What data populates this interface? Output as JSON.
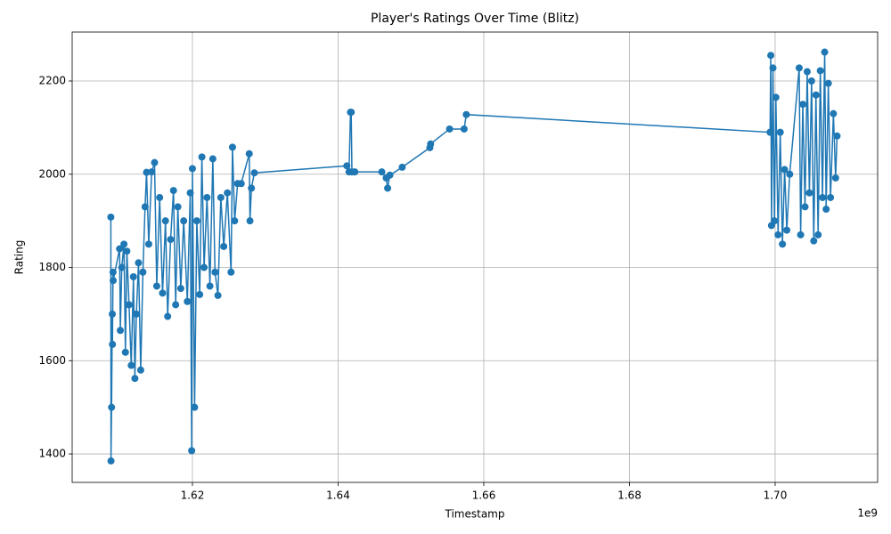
{
  "chart_data": {
    "type": "line",
    "title": "Player's Ratings Over Time (Blitz)",
    "xlabel": "Timestamp",
    "ylabel": "Rating",
    "x_offset_label": "1e9",
    "color": "#1f77b4",
    "grid": true,
    "marker": "circle",
    "xlim": [
      1603490000,
      1714070000
    ],
    "ylim": [
      1339,
      2305
    ],
    "xticks": [
      {
        "value": 1620000000,
        "label": "1.62"
      },
      {
        "value": 1640000000,
        "label": "1.64"
      },
      {
        "value": 1660000000,
        "label": "1.66"
      },
      {
        "value": 1680000000,
        "label": "1.68"
      },
      {
        "value": 1700000000,
        "label": "1.70"
      }
    ],
    "yticks": [
      1400,
      1600,
      1800,
      2000,
      2200
    ],
    "x": [
      1608800000,
      1608820000,
      1608900000,
      1609000000,
      1609020000,
      1609100000,
      1609120000,
      1610000000,
      1610100000,
      1610300000,
      1610600000,
      1610800000,
      1611000000,
      1611300000,
      1611600000,
      1611900000,
      1612100000,
      1612300000,
      1612600000,
      1612900000,
      1613200000,
      1613500000,
      1613700000,
      1614000000,
      1614400000,
      1614800000,
      1615100000,
      1615500000,
      1615900000,
      1616300000,
      1616600000,
      1617000000,
      1617400000,
      1617700000,
      1618000000,
      1618400000,
      1618800000,
      1619300000,
      1619700000,
      1619900000,
      1620000000,
      1620300000,
      1620600000,
      1621000000,
      1621300000,
      1621600000,
      1622000000,
      1622400000,
      1622800000,
      1623100000,
      1623500000,
      1623900000,
      1624300000,
      1624800000,
      1625300000,
      1625500000,
      1625800000,
      1626200000,
      1626700000,
      1627800000,
      1627900000,
      1628100000,
      1628500000,
      1641200000,
      1641500000,
      1641700000,
      1641800000,
      1641900000,
      1642300000,
      1646000000,
      1646600000,
      1646800000,
      1647100000,
      1648800000,
      1652600000,
      1652700000,
      1655300000,
      1657300000,
      1657600000,
      1699300000,
      1699400000,
      1699500000,
      1699700000,
      1699900000,
      1700100000,
      1700400000,
      1700700000,
      1701000000,
      1701300000,
      1701600000,
      1702000000,
      1703300000,
      1703500000,
      1703800000,
      1704100000,
      1704400000,
      1704700000,
      1705000000,
      1705300000,
      1705600000,
      1705900000,
      1706200000,
      1706500000,
      1706800000,
      1707000000,
      1707300000,
      1707600000,
      1708000000,
      1708300000,
      1708500000
    ],
    "values": [
      1908,
      1385,
      1500,
      1700,
      1635,
      1790,
      1772,
      1840,
      1665,
      1800,
      1850,
      1618,
      1835,
      1720,
      1590,
      1780,
      1562,
      1700,
      1810,
      1580,
      1790,
      1930,
      2004,
      1850,
      2005,
      2025,
      1760,
      1950,
      1745,
      1900,
      1695,
      1860,
      1965,
      1720,
      1930,
      1755,
      1900,
      1727,
      1960,
      1407,
      2012,
      1500,
      1900,
      1742,
      2037,
      1800,
      1950,
      1760,
      2033,
      1790,
      1740,
      1950,
      1845,
      1960,
      1790,
      2058,
      1900,
      1980,
      1980,
      2044,
      1900,
      1970,
      2003,
      2018,
      2005,
      2133,
      2133,
      2005,
      2005,
      2005,
      1992,
      1970,
      1998,
      2015,
      2057,
      2065,
      2097,
      2097,
      2128,
      2090,
      2255,
      1890,
      2228,
      1900,
      2165,
      1870,
      2090,
      1850,
      2010,
      1880,
      2000,
      2228,
      1870,
      2150,
      1930,
      2220,
      1960,
      2200,
      1857,
      2170,
      1870,
      2222,
      1950,
      2262,
      1925,
      2195,
      1950,
      2130,
      1992,
      2082
    ]
  }
}
